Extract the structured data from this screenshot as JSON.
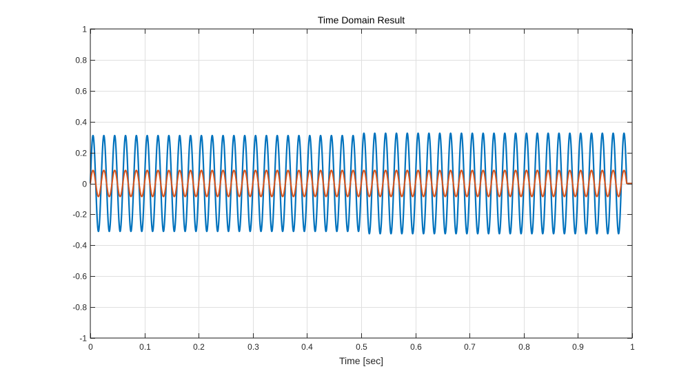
{
  "chart_data": {
    "type": "line",
    "title": "Time Domain Result",
    "xlabel": "Time [sec]",
    "ylabel": "",
    "xlim": [
      0,
      1
    ],
    "ylim": [
      -1,
      1
    ],
    "xticks": [
      0,
      0.1,
      0.2,
      0.3,
      0.4,
      0.5,
      0.6,
      0.7,
      0.8,
      0.9,
      1
    ],
    "yticks": [
      -1,
      -0.8,
      -0.6,
      -0.4,
      -0.2,
      0,
      0.2,
      0.4,
      0.6,
      0.8,
      1
    ],
    "xtick_labels": [
      "0",
      "0.1",
      "0.2",
      "0.3",
      "0.4",
      "0.5",
      "0.6",
      "0.7",
      "0.8",
      "0.9",
      "1"
    ],
    "ytick_labels": [
      "-1",
      "-0.8",
      "-0.6",
      "-0.4",
      "-0.2",
      "0",
      "0.2",
      "0.4",
      "0.6",
      "0.8",
      "1"
    ],
    "grid": true,
    "series": [
      {
        "color": "#0072BD",
        "frequency_hz": 50,
        "amplitude_segments": [
          {
            "t_start": 0.0,
            "t_end": 0.5,
            "amplitude": 0.31
          },
          {
            "t_start": 0.5,
            "t_end": 0.99,
            "amplitude": 0.325
          }
        ],
        "signal_end": 0.99,
        "tail_value": 0
      },
      {
        "color": "#D95319",
        "frequency_hz": 50,
        "amplitude_segments": [
          {
            "t_start": 0.0,
            "t_end": 0.99,
            "amplitude": 0.085
          }
        ],
        "signal_end": 0.99,
        "tail_value": 0
      }
    ]
  }
}
